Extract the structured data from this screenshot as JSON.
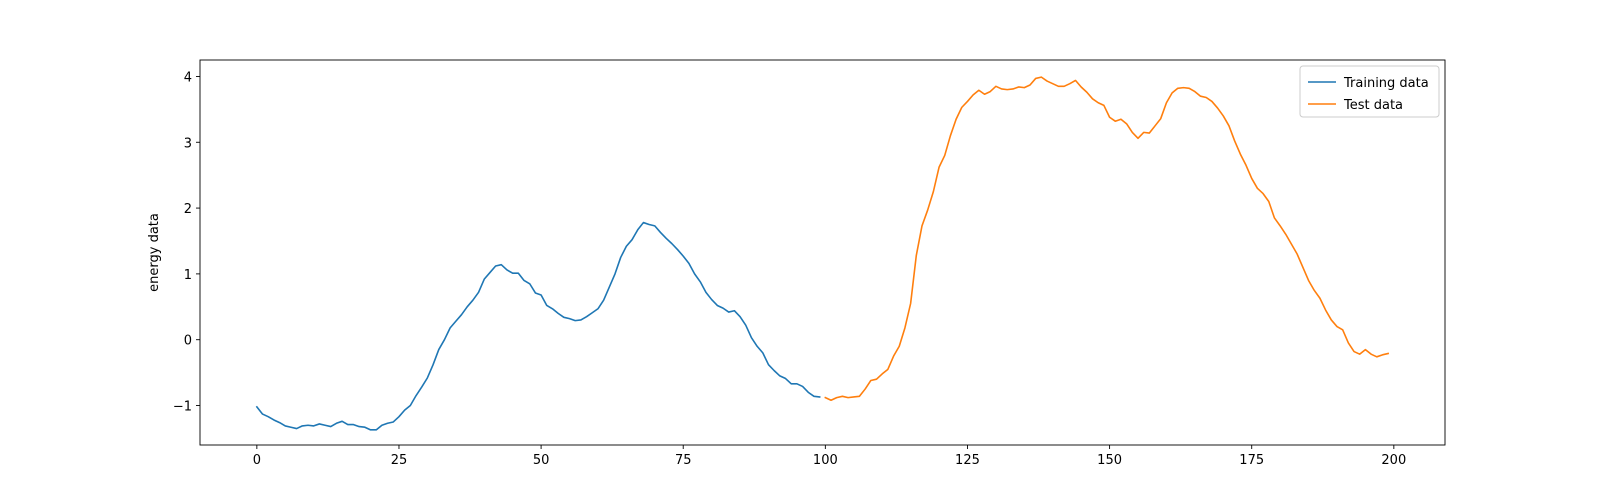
{
  "chart_data": {
    "type": "line",
    "title": "",
    "xlabel": "",
    "ylabel": "energy data",
    "xlim": [
      -10,
      209
    ],
    "ylim": [
      -1.6,
      4.25
    ],
    "xticks": [
      0,
      25,
      50,
      75,
      100,
      125,
      150,
      175,
      200
    ],
    "yticks": [
      -1,
      0,
      1,
      2,
      3,
      4
    ],
    "xtick_labels": [
      "0",
      "25",
      "50",
      "75",
      "100",
      "125",
      "150",
      "175",
      "200"
    ],
    "ytick_labels": [
      "−1",
      "0",
      "1",
      "2",
      "3",
      "4"
    ],
    "grid": false,
    "legend_position": "top-right",
    "series": [
      {
        "name": "Training data",
        "color": "#1f77b4",
        "x": [
          0,
          1,
          2,
          3,
          4,
          5,
          6,
          7,
          8,
          9,
          10,
          11,
          12,
          13,
          14,
          15,
          16,
          17,
          18,
          19,
          20,
          21,
          22,
          23,
          24,
          25,
          26,
          27,
          28,
          29,
          30,
          31,
          32,
          33,
          34,
          35,
          36,
          37,
          38,
          39,
          40,
          41,
          42,
          43,
          44,
          45,
          46,
          47,
          48,
          49,
          50,
          51,
          52,
          53,
          54,
          55,
          56,
          57,
          58,
          59,
          60,
          61,
          62,
          63,
          64,
          65,
          66,
          67,
          68,
          69,
          70,
          71,
          72,
          73,
          74,
          75,
          76,
          77,
          78,
          79,
          80,
          81,
          82,
          83,
          84,
          85,
          86,
          87,
          88,
          89,
          90,
          91,
          92,
          93,
          94,
          95,
          96,
          97,
          98,
          99
        ],
        "y": [
          -1.02,
          -1.13,
          -1.17,
          -1.22,
          -1.26,
          -1.31,
          -1.33,
          -1.35,
          -1.31,
          -1.3,
          -1.31,
          -1.28,
          -1.3,
          -1.32,
          -1.27,
          -1.24,
          -1.29,
          -1.29,
          -1.32,
          -1.33,
          -1.37,
          -1.37,
          -1.3,
          -1.27,
          -1.25,
          -1.17,
          -1.07,
          -1.0,
          -0.85,
          -0.72,
          -0.58,
          -0.38,
          -0.15,
          0.0,
          0.18,
          0.28,
          0.38,
          0.5,
          0.6,
          0.72,
          0.92,
          1.02,
          1.12,
          1.14,
          1.06,
          1.01,
          1.01,
          0.9,
          0.85,
          0.71,
          0.68,
          0.52,
          0.47,
          0.4,
          0.34,
          0.32,
          0.29,
          0.3,
          0.35,
          0.41,
          0.47,
          0.6,
          0.8,
          1.0,
          1.25,
          1.42,
          1.52,
          1.67,
          1.78,
          1.75,
          1.73,
          1.63,
          1.54,
          1.46,
          1.37,
          1.27,
          1.16,
          1.0,
          0.88,
          0.72,
          0.61,
          0.52,
          0.48,
          0.42,
          0.44,
          0.35,
          0.22,
          0.03,
          -0.1,
          -0.2,
          -0.38,
          -0.47,
          -0.55,
          -0.59,
          -0.67,
          -0.67,
          -0.71,
          -0.8,
          -0.86,
          -0.87
        ]
      },
      {
        "name": "Test data",
        "color": "#ff7f0e",
        "x": [
          100,
          101,
          102,
          103,
          104,
          105,
          106,
          107,
          108,
          109,
          110,
          111,
          112,
          113,
          114,
          115,
          116,
          117,
          118,
          119,
          120,
          121,
          122,
          123,
          124,
          125,
          126,
          127,
          128,
          129,
          130,
          131,
          132,
          133,
          134,
          135,
          136,
          137,
          138,
          139,
          140,
          141,
          142,
          143,
          144,
          145,
          146,
          147,
          148,
          149,
          150,
          151,
          152,
          153,
          154,
          155,
          156,
          157,
          158,
          159,
          160,
          161,
          162,
          163,
          164,
          165,
          166,
          167,
          168,
          169,
          170,
          171,
          172,
          173,
          174,
          175,
          176,
          177,
          178,
          179,
          180,
          181,
          182,
          183,
          184,
          185,
          186,
          187,
          188,
          189,
          190,
          191,
          192,
          193,
          194,
          195,
          196,
          197,
          198,
          199
        ],
        "y": [
          -0.88,
          -0.92,
          -0.88,
          -0.86,
          -0.88,
          -0.87,
          -0.86,
          -0.75,
          -0.62,
          -0.6,
          -0.52,
          -0.45,
          -0.25,
          -0.1,
          0.18,
          0.55,
          1.28,
          1.73,
          1.97,
          2.25,
          2.62,
          2.8,
          3.1,
          3.35,
          3.53,
          3.62,
          3.72,
          3.79,
          3.73,
          3.77,
          3.85,
          3.81,
          3.8,
          3.81,
          3.84,
          3.83,
          3.87,
          3.97,
          3.99,
          3.93,
          3.89,
          3.85,
          3.85,
          3.89,
          3.94,
          3.84,
          3.76,
          3.66,
          3.6,
          3.56,
          3.38,
          3.32,
          3.35,
          3.28,
          3.15,
          3.06,
          3.15,
          3.14,
          3.25,
          3.36,
          3.6,
          3.75,
          3.82,
          3.83,
          3.82,
          3.77,
          3.7,
          3.68,
          3.62,
          3.52,
          3.4,
          3.25,
          3.02,
          2.82,
          2.65,
          2.45,
          2.3,
          2.22,
          2.1,
          1.85,
          1.73,
          1.6,
          1.45,
          1.3,
          1.1,
          0.9,
          0.75,
          0.63,
          0.45,
          0.3,
          0.2,
          0.15,
          -0.05,
          -0.18,
          -0.22,
          -0.15,
          -0.22,
          -0.26,
          -0.23,
          -0.21
        ]
      }
    ]
  }
}
